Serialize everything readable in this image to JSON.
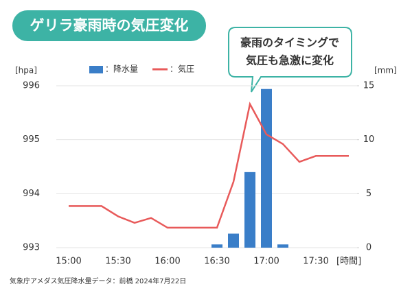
{
  "chart_data": {
    "type": "bar-line",
    "title": "ゲリラ豪雨時の気圧変化",
    "annotation": [
      "豪雨のタイミングで",
      "気圧も急激に変化"
    ],
    "y_label": "[hpa]",
    "y2_label": "[mm]",
    "x_label": "[時間]",
    "source": "気象庁アメダス気圧降水量データ：前橋 2024年7月22日",
    "categories": [
      "15:00",
      null,
      null,
      "15:30",
      null,
      null,
      "16:00",
      null,
      null,
      "16:30",
      null,
      null,
      "17:00",
      null,
      null,
      "17:30",
      null,
      null
    ],
    "series": [
      {
        "name": "：降水量",
        "type": "bar",
        "axis": "y2",
        "color": "#3a7ec8",
        "values": [
          0,
          0,
          0,
          0,
          0,
          0,
          0,
          0,
          0,
          0.3,
          1.3,
          7,
          14.7,
          0.3,
          0,
          0,
          0,
          0
        ]
      },
      {
        "name": "：気圧",
        "type": "line",
        "axis": "y",
        "color": "#e85a5a",
        "values": [
          993.77,
          993.77,
          993.77,
          993.58,
          993.46,
          993.55,
          993.37,
          993.37,
          993.37,
          993.37,
          994.22,
          995.66,
          995.1,
          994.92,
          994.59,
          994.7,
          994.7,
          994.7
        ]
      }
    ],
    "ylim": [
      993,
      996
    ],
    "yticks": [
      993,
      994,
      995,
      996
    ],
    "y2lim": [
      0,
      15
    ],
    "y2ticks": [
      0,
      5,
      10,
      15
    ],
    "grid": true
  }
}
